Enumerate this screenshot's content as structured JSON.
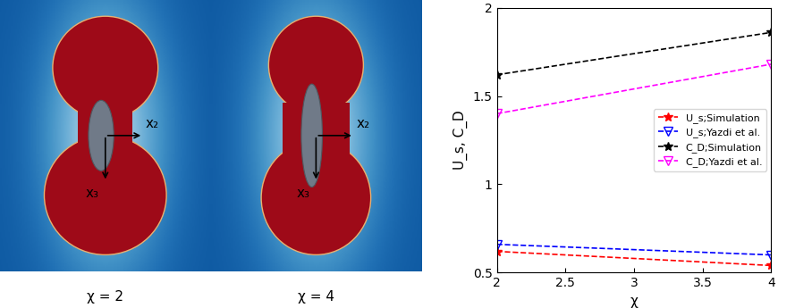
{
  "chart_data": {
    "type": "line",
    "x_label": "χ",
    "y_label": "U_s, C_D",
    "x": [
      2,
      4
    ],
    "series": [
      {
        "name": "U_s;Simulation",
        "color": "#ff0000",
        "marker": "star",
        "line_style": "dashed",
        "values": [
          0.62,
          0.54
        ]
      },
      {
        "name": "U_s;Yazdi et al.",
        "color": "#0000ff",
        "marker": "triangle_down",
        "line_style": "dashed",
        "values": [
          0.66,
          0.6
        ]
      },
      {
        "name": "C_D;Simulation",
        "color": "#000000",
        "marker": "star",
        "line_style": "dashed",
        "values": [
          1.62,
          1.86
        ]
      },
      {
        "name": "C_D;Yazdi et al.",
        "color": "#ff00ff",
        "marker": "triangle_down",
        "line_style": "dashed",
        "values": [
          1.4,
          1.68
        ]
      }
    ],
    "xlim": [
      2,
      4
    ],
    "xticks": [
      2,
      2.5,
      3,
      3.5,
      4
    ],
    "ylim": [
      0.5,
      2
    ],
    "yticks": [
      0.5,
      1,
      1.5,
      2
    ],
    "legend": "center right",
    "grid": false
  },
  "panels": [
    {
      "label": "χ = 2",
      "axis_labels": [
        "x₂",
        "x₃"
      ]
    },
    {
      "label": "χ = 4",
      "axis_labels": [
        "x₂",
        "x₃"
      ]
    }
  ]
}
